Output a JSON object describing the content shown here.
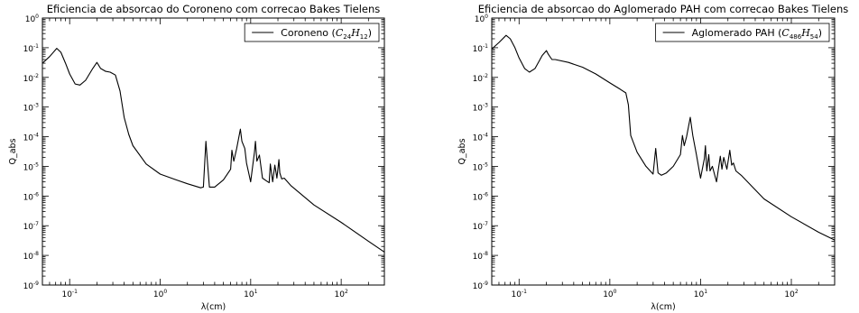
{
  "chart_data": [
    {
      "type": "line",
      "title": "Eficiencia de absorcao do Coroneno com correcao Bakes Tielens",
      "xlabel": "λ(cm)",
      "ylabel": "Q_abs",
      "xscale": "log",
      "yscale": "log",
      "xlim": [
        0.05,
        300
      ],
      "ylim": [
        1e-09,
        1
      ],
      "xticks": [
        {
          "v": 0.1,
          "b": "10",
          "e": "-1"
        },
        {
          "v": 1,
          "b": "10",
          "e": "0"
        },
        {
          "v": 10,
          "b": "10",
          "e": "1"
        },
        {
          "v": 100,
          "b": "10",
          "e": "2"
        }
      ],
      "yticks": [
        {
          "v": 1e-09,
          "b": "10",
          "e": "-9"
        },
        {
          "v": 1e-08,
          "b": "10",
          "e": "-8"
        },
        {
          "v": 1e-07,
          "b": "10",
          "e": "-7"
        },
        {
          "v": 1e-06,
          "b": "10",
          "e": "-6"
        },
        {
          "v": 1e-05,
          "b": "10",
          "e": "-5"
        },
        {
          "v": 0.0001,
          "b": "10",
          "e": "-4"
        },
        {
          "v": 0.001,
          "b": "10",
          "e": "-3"
        },
        {
          "v": 0.01,
          "b": "10",
          "e": "-2"
        },
        {
          "v": 0.1,
          "b": "10",
          "e": "-1"
        },
        {
          "v": 1,
          "b": "10",
          "e": "0"
        }
      ],
      "legend": {
        "position": "top-right",
        "name": "Coroneno",
        "species": [
          [
            "C",
            "24"
          ],
          [
            "H",
            "12"
          ]
        ]
      },
      "series": [
        {
          "x": [
            0.05,
            0.06,
            0.072,
            0.08,
            0.09,
            0.1,
            0.115,
            0.13,
            0.15,
            0.18,
            0.2,
            0.22,
            0.25,
            0.28,
            0.32,
            0.36,
            0.4,
            0.45,
            0.5,
            0.7,
            1.0,
            1.5,
            2.0,
            2.8,
            3.0,
            3.2,
            3.3,
            3.5,
            4.0,
            5.0,
            6.0,
            6.2,
            6.5,
            7.0,
            7.7,
            8.0,
            8.6,
            9.0,
            10.0,
            11.0,
            11.3,
            11.7,
            12.5,
            13.5,
            15.0,
            16.0,
            16.5,
            17.5,
            18.5,
            19.5,
            20.5,
            21.0,
            22.0,
            23.5,
            28.0,
            50.0,
            100.0,
            200.0,
            300.0
          ],
          "y": [
            0.03,
            0.05,
            0.095,
            0.07,
            0.03,
            0.013,
            0.006,
            0.0055,
            0.008,
            0.02,
            0.032,
            0.02,
            0.016,
            0.015,
            0.012,
            0.0035,
            0.00045,
            0.00012,
            5e-05,
            1.2e-05,
            5.5e-06,
            3.5e-06,
            2.6e-06,
            1.9e-06,
            2e-06,
            7e-05,
            2e-05,
            2e-06,
            2e-06,
            3.5e-06,
            8e-06,
            3.5e-05,
            1.5e-05,
            4e-05,
            0.00018,
            7e-05,
            4e-05,
            1.3e-05,
            3e-06,
            3e-05,
            7e-05,
            1.5e-05,
            2.4e-05,
            4e-06,
            3.2e-06,
            2.8e-06,
            1.2e-05,
            3e-06,
            1.1e-05,
            4e-06,
            1.7e-05,
            6e-06,
            3.8e-06,
            4e-06,
            2.2e-06,
            5e-07,
            1.3e-07,
            3e-08,
            1.3e-08
          ]
        }
      ]
    },
    {
      "type": "line",
      "title": "Eficiencia de absorcao do Aglomerado PAH com correcao Bakes Tielens",
      "xlabel": "λ(cm)",
      "ylabel": "Q_abs",
      "xscale": "log",
      "yscale": "log",
      "xlim": [
        0.05,
        300
      ],
      "ylim": [
        1e-09,
        1
      ],
      "xticks": [
        {
          "v": 0.1,
          "b": "10",
          "e": "-1"
        },
        {
          "v": 1,
          "b": "10",
          "e": "0"
        },
        {
          "v": 10,
          "b": "10",
          "e": "1"
        },
        {
          "v": 100,
          "b": "10",
          "e": "2"
        }
      ],
      "yticks": [
        {
          "v": 1e-09,
          "b": "10",
          "e": "-9"
        },
        {
          "v": 1e-08,
          "b": "10",
          "e": "-8"
        },
        {
          "v": 1e-07,
          "b": "10",
          "e": "-7"
        },
        {
          "v": 1e-06,
          "b": "10",
          "e": "-6"
        },
        {
          "v": 1e-05,
          "b": "10",
          "e": "-5"
        },
        {
          "v": 0.0001,
          "b": "10",
          "e": "-4"
        },
        {
          "v": 0.001,
          "b": "10",
          "e": "-3"
        },
        {
          "v": 0.01,
          "b": "10",
          "e": "-2"
        },
        {
          "v": 0.1,
          "b": "10",
          "e": "-1"
        },
        {
          "v": 1,
          "b": "10",
          "e": "0"
        }
      ],
      "legend": {
        "position": "top-right",
        "name": "Aglomerado PAH",
        "species": [
          [
            "C",
            "486"
          ],
          [
            "H",
            "54"
          ]
        ]
      },
      "series": [
        {
          "x": [
            0.05,
            0.06,
            0.072,
            0.08,
            0.09,
            0.1,
            0.115,
            0.13,
            0.15,
            0.18,
            0.2,
            0.21,
            0.23,
            0.25,
            0.35,
            0.5,
            0.7,
            1.0,
            1.3,
            1.5,
            1.6,
            1.7,
            2.0,
            2.5,
            3.0,
            3.2,
            3.4,
            3.7,
            4.2,
            5.0,
            6.0,
            6.3,
            6.6,
            7.0,
            7.7,
            8.2,
            9.0,
            10.0,
            11.0,
            11.3,
            11.7,
            12.3,
            12.7,
            13.5,
            15.0,
            16.5,
            17.2,
            18.0,
            19.5,
            21.0,
            22.0,
            23.0,
            24.5,
            28.0,
            50.0,
            100.0,
            200.0,
            300.0
          ],
          "y": [
            0.09,
            0.15,
            0.26,
            0.2,
            0.1,
            0.045,
            0.02,
            0.015,
            0.02,
            0.055,
            0.08,
            0.06,
            0.04,
            0.04,
            0.032,
            0.022,
            0.013,
            0.0065,
            0.004,
            0.003,
            0.0012,
            0.00011,
            3e-05,
            1e-05,
            5.5e-06,
            4e-05,
            6e-06,
            5e-06,
            6e-06,
            1e-05,
            2.5e-05,
            0.00011,
            5e-05,
            0.0001,
            0.00045,
            0.00011,
            2.5e-05,
            4e-06,
            1.8e-05,
            5e-05,
            7e-06,
            2.5e-05,
            7e-06,
            1e-05,
            3e-06,
            2.2e-05,
            8e-06,
            2e-05,
            8e-06,
            3.5e-05,
            1.1e-05,
            1.3e-05,
            7e-06,
            5e-06,
            8e-07,
            2e-07,
            6e-08,
            3.3e-08
          ]
        }
      ]
    }
  ]
}
